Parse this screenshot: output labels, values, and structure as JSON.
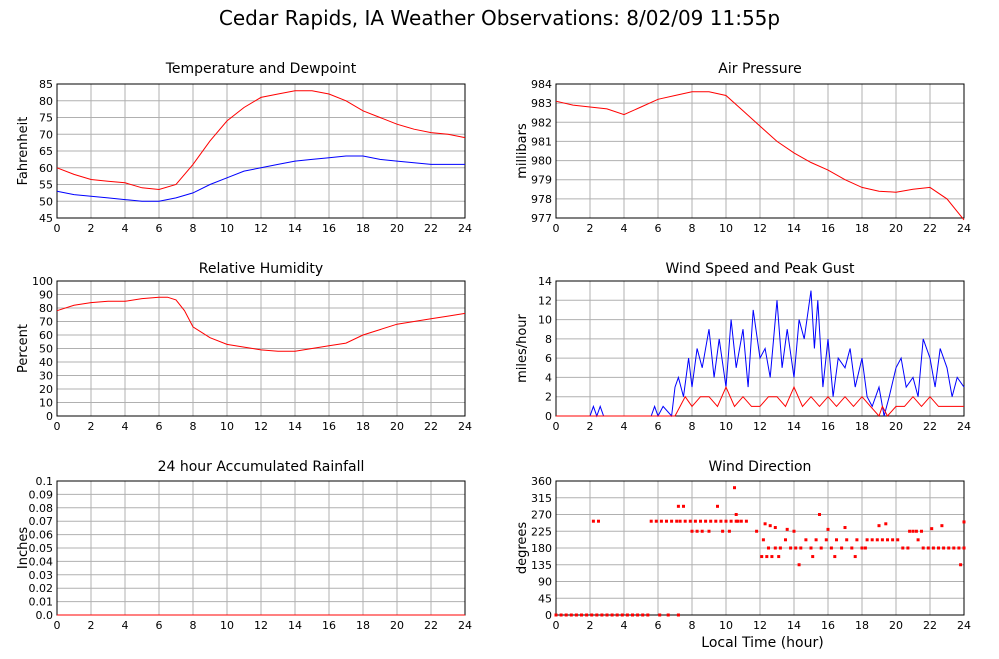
{
  "page_title": "Cedar Rapids, IA Weather Observations: 8/02/09 11:55p",
  "xlabel_shared": "Local Time (hour)",
  "colors": {
    "red": "#ff0000",
    "blue": "#0000ff",
    "grid": "#b0b0b0",
    "frame": "#000000"
  },
  "chart_data": [
    {
      "type": "line",
      "title": "Temperature and Dewpoint",
      "ylabel": "Fahrenheit",
      "xlim": [
        0,
        24
      ],
      "ylim": [
        45,
        85
      ],
      "xticks": [
        0,
        2,
        4,
        6,
        8,
        10,
        12,
        14,
        16,
        18,
        20,
        22,
        24
      ],
      "yticks": [
        45,
        50,
        55,
        60,
        65,
        70,
        75,
        80,
        85
      ],
      "ytick_labels": [
        "45",
        "50",
        "55",
        "60",
        "65",
        "70",
        "75",
        "80",
        "85"
      ],
      "grid": true,
      "series": [
        {
          "color": "#ff0000",
          "x": [
            0,
            1,
            2,
            3,
            4,
            5,
            6,
            7,
            8,
            9,
            10,
            11,
            12,
            13,
            14,
            15,
            16,
            17,
            18,
            19,
            20,
            21,
            22,
            23,
            24
          ],
          "y": [
            60,
            58,
            56.5,
            56,
            55.5,
            54,
            53.5,
            55,
            61,
            68,
            74,
            78,
            81,
            82,
            83,
            83,
            82,
            80,
            77,
            75,
            73,
            71.5,
            70.5,
            70,
            69
          ]
        },
        {
          "color": "#0000ff",
          "x": [
            0,
            1,
            2,
            3,
            4,
            5,
            6,
            7,
            8,
            9,
            10,
            11,
            12,
            13,
            14,
            15,
            16,
            17,
            18,
            19,
            20,
            21,
            22,
            23,
            24
          ],
          "y": [
            53,
            52,
            51.5,
            51,
            50.5,
            50,
            50,
            51,
            52.5,
            55,
            57,
            59,
            60,
            61,
            62,
            62.5,
            63,
            63.5,
            63.5,
            62.5,
            62,
            61.5,
            61,
            61,
            61
          ]
        }
      ]
    },
    {
      "type": "line",
      "title": "Air Pressure",
      "ylabel": "millibars",
      "xlim": [
        0,
        24
      ],
      "ylim": [
        977,
        984
      ],
      "xticks": [
        0,
        2,
        4,
        6,
        8,
        10,
        12,
        14,
        16,
        18,
        20,
        22,
        24
      ],
      "yticks": [
        977,
        978,
        979,
        980,
        981,
        982,
        983,
        984
      ],
      "ytick_labels": [
        "977",
        "978",
        "979",
        "980",
        "981",
        "982",
        "983",
        "984"
      ],
      "grid": true,
      "series": [
        {
          "color": "#ff0000",
          "x": [
            0,
            1,
            2,
            3,
            4,
            5,
            6,
            7,
            8,
            9,
            10,
            11,
            12,
            13,
            14,
            15,
            16,
            17,
            18,
            19,
            20,
            21,
            22,
            23,
            24
          ],
          "y": [
            983.1,
            982.9,
            982.8,
            982.7,
            982.4,
            982.8,
            983.2,
            983.4,
            983.6,
            983.6,
            983.4,
            982.6,
            981.8,
            981.0,
            980.4,
            979.9,
            979.5,
            979.0,
            978.6,
            978.4,
            978.35,
            978.5,
            978.6,
            978.0,
            976.9
          ]
        }
      ]
    },
    {
      "type": "line",
      "title": "Relative Humidity",
      "ylabel": "Percent",
      "xlim": [
        0,
        24
      ],
      "ylim": [
        0,
        100
      ],
      "xticks": [
        0,
        2,
        4,
        6,
        8,
        10,
        12,
        14,
        16,
        18,
        20,
        22,
        24
      ],
      "yticks": [
        0,
        10,
        20,
        30,
        40,
        50,
        60,
        70,
        80,
        90,
        100
      ],
      "ytick_labels": [
        "0",
        "10",
        "20",
        "30",
        "40",
        "50",
        "60",
        "70",
        "80",
        "90",
        "100"
      ],
      "grid": true,
      "series": [
        {
          "color": "#ff0000",
          "x": [
            0,
            1,
            2,
            3,
            4,
            5,
            6,
            6.5,
            7,
            7.5,
            8,
            9,
            10,
            11,
            12,
            13,
            14,
            15,
            16,
            17,
            18,
            19,
            20,
            21,
            22,
            23,
            24
          ],
          "y": [
            78,
            82,
            84,
            85,
            85,
            87,
            88,
            88,
            86,
            78,
            66,
            58,
            53,
            51,
            49,
            48,
            48,
            50,
            52,
            54,
            60,
            64,
            68,
            70,
            72,
            74,
            76
          ]
        }
      ]
    },
    {
      "type": "line",
      "title": "Wind Speed and Peak Gust",
      "ylabel": "miles/hour",
      "xlim": [
        0,
        24
      ],
      "ylim": [
        0,
        14
      ],
      "xticks": [
        0,
        2,
        4,
        6,
        8,
        10,
        12,
        14,
        16,
        18,
        20,
        22,
        24
      ],
      "yticks": [
        0,
        2,
        4,
        6,
        8,
        10,
        12,
        14
      ],
      "ytick_labels": [
        "0",
        "2",
        "4",
        "6",
        "8",
        "10",
        "12",
        "14"
      ],
      "grid": true,
      "series": [
        {
          "color": "#0000ff",
          "x": [
            0,
            2,
            2.2,
            2.4,
            2.6,
            2.8,
            5.6,
            5.8,
            6.0,
            6.3,
            6.8,
            7,
            7.2,
            7.5,
            7.8,
            8,
            8.3,
            8.6,
            9,
            9.3,
            9.6,
            10,
            10.3,
            10.6,
            11,
            11.3,
            11.6,
            12,
            12.3,
            12.6,
            13,
            13.3,
            13.6,
            14,
            14.3,
            14.6,
            15,
            15.2,
            15.4,
            15.7,
            16,
            16.3,
            16.6,
            17,
            17.3,
            17.6,
            18,
            18.3,
            18.6,
            19,
            19.3,
            19.6,
            20,
            20.3,
            20.6,
            21,
            21.3,
            21.6,
            22,
            22.3,
            22.6,
            23,
            23.3,
            23.6,
            24
          ],
          "y": [
            0,
            0,
            1,
            0,
            1,
            0,
            0,
            1,
            0,
            1,
            0,
            3,
            4,
            2,
            6,
            3,
            7,
            5,
            9,
            4,
            8,
            3,
            10,
            5,
            9,
            3,
            11,
            6,
            7,
            4,
            12,
            5,
            9,
            4,
            10,
            8,
            13,
            7,
            12,
            3,
            8,
            2,
            6,
            5,
            7,
            3,
            6,
            2,
            1,
            3,
            0,
            2,
            5,
            6,
            3,
            4,
            2,
            8,
            6,
            3,
            7,
            5,
            2,
            4,
            3
          ]
        },
        {
          "color": "#ff0000",
          "x": [
            0,
            7,
            7.3,
            7.6,
            8,
            8.5,
            9,
            9.5,
            10,
            10.5,
            11,
            11.5,
            12,
            12.5,
            13,
            13.5,
            14,
            14.5,
            15,
            15.5,
            16,
            16.5,
            17,
            17.5,
            18,
            18.5,
            19,
            19.2,
            19.5,
            20,
            20.5,
            21,
            21.5,
            22,
            22.5,
            23,
            23.5,
            24
          ],
          "y": [
            0,
            0,
            1,
            2,
            1,
            2,
            2,
            1,
            3,
            1,
            2,
            1,
            1,
            2,
            2,
            1,
            3,
            1,
            2,
            1,
            2,
            1,
            2,
            1,
            2,
            1,
            0,
            1,
            0,
            1,
            1,
            2,
            1,
            2,
            1,
            1,
            1,
            1
          ]
        }
      ]
    },
    {
      "type": "line",
      "title": "24 hour Accumulated Rainfall",
      "ylabel": "Inches",
      "xlim": [
        0,
        24
      ],
      "ylim": [
        0,
        0.1
      ],
      "xticks": [
        0,
        2,
        4,
        6,
        8,
        10,
        12,
        14,
        16,
        18,
        20,
        22,
        24
      ],
      "yticks": [
        0,
        0.01,
        0.02,
        0.03,
        0.04,
        0.05,
        0.06,
        0.07,
        0.08,
        0.09,
        0.1
      ],
      "ytick_labels": [
        "0.0",
        "0.01",
        "0.02",
        "0.03",
        "0.04",
        "0.05",
        "0.06",
        "0.07",
        "0.08",
        "0.09",
        "0.1"
      ],
      "grid": true,
      "series": [
        {
          "color": "#ff0000",
          "x": [
            0,
            24
          ],
          "y": [
            0,
            0
          ]
        }
      ]
    },
    {
      "type": "scatter",
      "title": "Wind Direction",
      "ylabel": "degrees",
      "xlabel": "Local Time (hour)",
      "xlim": [
        0,
        24
      ],
      "ylim": [
        0,
        360
      ],
      "xticks": [
        0,
        2,
        4,
        6,
        8,
        10,
        12,
        14,
        16,
        18,
        20,
        22,
        24
      ],
      "yticks": [
        0,
        45,
        90,
        135,
        180,
        225,
        270,
        315,
        360
      ],
      "ytick_labels": [
        "0",
        "45",
        "90",
        "135",
        "180",
        "225",
        "270",
        "315",
        "360"
      ],
      "grid": true,
      "series": [
        {
          "color": "#ff0000",
          "x": [
            0,
            0.3,
            0.6,
            0.9,
            1.2,
            1.5,
            1.8,
            2.1,
            2.4,
            2.7,
            3,
            3.3,
            3.6,
            3.9,
            4.2,
            4.5,
            4.8,
            5.1,
            5.4,
            6.1,
            6.6,
            7.2,
            2.2,
            2.5,
            5.6,
            5.9,
            6.2,
            6.5,
            6.8,
            7.1,
            7.3,
            7.6,
            7.9,
            8.2,
            8.5,
            8.8,
            9.1,
            9.4,
            9.7,
            10,
            10.3,
            10.6,
            10.9,
            11.2,
            7.2,
            7.5,
            9.5,
            10.5,
            10.7,
            11.8,
            12.2,
            12.5,
            12.9,
            13.2,
            13.5,
            13.8,
            14.1,
            14.4,
            14.7,
            15,
            15.3,
            15.6,
            15.9,
            16.2,
            16.5,
            16.8,
            17.1,
            17.4,
            17.7,
            18,
            18.3,
            18.6,
            18.9,
            19.2,
            19.5,
            19.8,
            20.1,
            20.4,
            20.7,
            21,
            21.3,
            21.6,
            21.9,
            22.2,
            22.5,
            22.8,
            23.1,
            23.4,
            23.7,
            24,
            12.1,
            12.4,
            12.7,
            13.1,
            14.3,
            15.1,
            16.4,
            17.6,
            18.2,
            20.8,
            21.2,
            21.5,
            23.8,
            24,
            12.3,
            12.6,
            12.9,
            13.6,
            14.0,
            15.5,
            16.0,
            17.0,
            19.0,
            19.4,
            22.1,
            22.7,
            8.0,
            8.3,
            8.6,
            9.0,
            9.8,
            10.2,
            10.6
          ],
          "y": [
            0,
            0,
            0,
            0,
            0,
            0,
            0,
            0,
            0,
            0,
            0,
            0,
            0,
            0,
            0,
            0,
            0,
            0,
            0,
            0,
            0,
            0,
            252,
            252,
            252,
            252,
            252,
            252,
            252,
            252,
            252,
            252,
            252,
            252,
            252,
            252,
            252,
            252,
            252,
            252,
            252,
            252,
            252,
            252,
            292,
            292,
            292,
            342,
            252,
            225,
            202,
            180,
            180,
            180,
            202,
            180,
            180,
            180,
            202,
            180,
            202,
            180,
            202,
            180,
            202,
            180,
            202,
            180,
            202,
            180,
            202,
            202,
            202,
            202,
            202,
            202,
            202,
            180,
            180,
            225,
            202,
            180,
            180,
            180,
            180,
            180,
            180,
            180,
            180,
            180,
            157,
            157,
            157,
            157,
            135,
            157,
            157,
            157,
            180,
            225,
            225,
            225,
            135,
            250,
            245,
            240,
            235,
            230,
            225,
            270,
            230,
            235,
            240,
            245,
            232,
            240,
            225,
            225,
            225,
            225,
            225,
            225,
            270
          ]
        }
      ]
    }
  ]
}
